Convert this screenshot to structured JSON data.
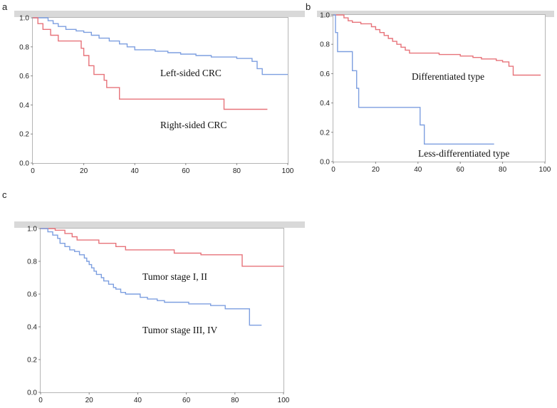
{
  "colors": {
    "red": "#e7737a",
    "blue": "#7d9fe0",
    "frame": "#b5b5b5",
    "topbar": "#d9d9d9"
  },
  "chart_data": [
    {
      "panel": "a",
      "type": "line",
      "xlim": [
        0,
        100
      ],
      "ylim": [
        0.0,
        1.0
      ],
      "xticks": [
        "0",
        "20",
        "40",
        "60",
        "80",
        "100"
      ],
      "yticks": [
        "0.0",
        "0.2",
        "0.4",
        "0.6",
        "0.8",
        "1.0"
      ],
      "series": [
        {
          "name": "Left-sided CRC",
          "color": "blue",
          "steps": [
            [
              0,
              1.0
            ],
            [
              6,
              0.98
            ],
            [
              8,
              0.96
            ],
            [
              10,
              0.94
            ],
            [
              13,
              0.92
            ],
            [
              17,
              0.91
            ],
            [
              20,
              0.9
            ],
            [
              23,
              0.88
            ],
            [
              26,
              0.86
            ],
            [
              30,
              0.84
            ],
            [
              34,
              0.82
            ],
            [
              37,
              0.8
            ],
            [
              40,
              0.78
            ],
            [
              48,
              0.77
            ],
            [
              53,
              0.76
            ],
            [
              58,
              0.75
            ],
            [
              64,
              0.74
            ],
            [
              70,
              0.73
            ],
            [
              80,
              0.72
            ],
            [
              86,
              0.7
            ],
            [
              88,
              0.65
            ],
            [
              90,
              0.61
            ],
            [
              100,
              0.61
            ]
          ]
        },
        {
          "name": "Right-sided CRC",
          "color": "red",
          "steps": [
            [
              0,
              1.0
            ],
            [
              2,
              0.96
            ],
            [
              4,
              0.92
            ],
            [
              7,
              0.88
            ],
            [
              10,
              0.84
            ],
            [
              19,
              0.79
            ],
            [
              20,
              0.74
            ],
            [
              22,
              0.67
            ],
            [
              24,
              0.61
            ],
            [
              28,
              0.57
            ],
            [
              29,
              0.52
            ],
            [
              34,
              0.44
            ],
            [
              75,
              0.37
            ],
            [
              92,
              0.37
            ]
          ]
        }
      ],
      "annotations": [
        "Left-sided CRC",
        "Right-sided CRC"
      ]
    },
    {
      "panel": "b",
      "type": "line",
      "xlim": [
        0,
        100
      ],
      "ylim": [
        0.0,
        1.0
      ],
      "xticks": [
        "0",
        "20",
        "40",
        "60",
        "80",
        "100"
      ],
      "yticks": [
        "0.0",
        "0.2",
        "0.4",
        "0.6",
        "0.8",
        "1.0"
      ],
      "series": [
        {
          "name": "Differentiated type",
          "color": "red",
          "steps": [
            [
              0,
              1.0
            ],
            [
              5,
              0.98
            ],
            [
              7,
              0.96
            ],
            [
              9,
              0.95
            ],
            [
              13,
              0.94
            ],
            [
              18,
              0.92
            ],
            [
              20,
              0.9
            ],
            [
              22,
              0.88
            ],
            [
              24,
              0.86
            ],
            [
              26,
              0.84
            ],
            [
              28,
              0.82
            ],
            [
              30,
              0.8
            ],
            [
              32,
              0.78
            ],
            [
              34,
              0.76
            ],
            [
              36,
              0.74
            ],
            [
              50,
              0.73
            ],
            [
              60,
              0.72
            ],
            [
              66,
              0.71
            ],
            [
              70,
              0.7
            ],
            [
              77,
              0.69
            ],
            [
              80,
              0.68
            ],
            [
              83,
              0.65
            ],
            [
              85,
              0.59
            ],
            [
              98,
              0.59
            ]
          ]
        },
        {
          "name": "Less-differentiated type",
          "color": "blue",
          "steps": [
            [
              0,
              1.0
            ],
            [
              1,
              0.88
            ],
            [
              2,
              0.75
            ],
            [
              9,
              0.62
            ],
            [
              11,
              0.5
            ],
            [
              12,
              0.37
            ],
            [
              41,
              0.25
            ],
            [
              43,
              0.12
            ],
            [
              76,
              0.12
            ]
          ]
        }
      ],
      "annotations": [
        "Differentiated type",
        "Less-differentiated type"
      ]
    },
    {
      "panel": "c",
      "type": "line",
      "xlim": [
        0,
        100
      ],
      "ylim": [
        0.0,
        1.0
      ],
      "xticks": [
        "0",
        "20",
        "40",
        "60",
        "80",
        "100"
      ],
      "yticks": [
        "0.0",
        "0.2",
        "0.4",
        "0.6",
        "0.8",
        "1.0"
      ],
      "series": [
        {
          "name": "Tumor stage I, II",
          "color": "red",
          "steps": [
            [
              0,
              1.0
            ],
            [
              6,
              0.99
            ],
            [
              10,
              0.97
            ],
            [
              13,
              0.95
            ],
            [
              15,
              0.93
            ],
            [
              24,
              0.91
            ],
            [
              31,
              0.89
            ],
            [
              35,
              0.87
            ],
            [
              55,
              0.85
            ],
            [
              66,
              0.84
            ],
            [
              82,
              0.84
            ],
            [
              83,
              0.77
            ],
            [
              100,
              0.77
            ]
          ]
        },
        {
          "name": "Tumor stage III, IV",
          "color": "blue",
          "steps": [
            [
              0,
              1.0
            ],
            [
              3,
              0.98
            ],
            [
              5,
              0.96
            ],
            [
              7,
              0.94
            ],
            [
              8,
              0.91
            ],
            [
              10,
              0.89
            ],
            [
              12,
              0.87
            ],
            [
              14,
              0.86
            ],
            [
              16,
              0.84
            ],
            [
              18,
              0.82
            ],
            [
              19,
              0.8
            ],
            [
              20,
              0.78
            ],
            [
              21,
              0.76
            ],
            [
              22,
              0.74
            ],
            [
              23,
              0.72
            ],
            [
              25,
              0.7
            ],
            [
              26,
              0.68
            ],
            [
              28,
              0.66
            ],
            [
              30,
              0.64
            ],
            [
              31,
              0.63
            ],
            [
              33,
              0.61
            ],
            [
              35,
              0.6
            ],
            [
              41,
              0.58
            ],
            [
              44,
              0.57
            ],
            [
              48,
              0.56
            ],
            [
              51,
              0.55
            ],
            [
              61,
              0.54
            ],
            [
              70,
              0.53
            ],
            [
              76,
              0.51
            ],
            [
              85,
              0.51
            ],
            [
              86,
              0.41
            ],
            [
              91,
              0.41
            ]
          ]
        }
      ],
      "annotations": [
        "Tumor stage I, II",
        "Tumor stage III, IV"
      ]
    }
  ]
}
